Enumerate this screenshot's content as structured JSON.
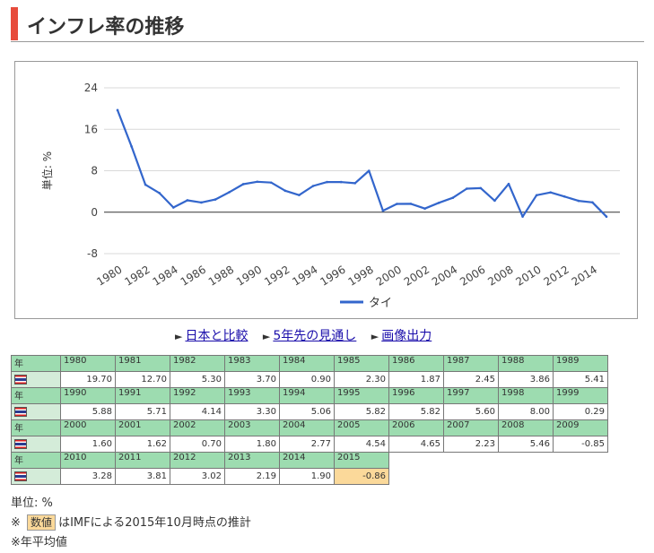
{
  "page": {
    "title": "インフレ率の推移"
  },
  "chart_data": {
    "type": "line",
    "ylabel": "単位: %",
    "ylim": [
      -8,
      24
    ],
    "yticks": [
      24,
      16,
      8,
      0,
      -8
    ],
    "xticks": [
      "1980",
      "1982",
      "1984",
      "1986",
      "1988",
      "1990",
      "1992",
      "1994",
      "1996",
      "1998",
      "2000",
      "2002",
      "2004",
      "2006",
      "2008",
      "2010",
      "2012",
      "2014"
    ],
    "x": [
      1980,
      1981,
      1982,
      1983,
      1984,
      1985,
      1986,
      1987,
      1988,
      1989,
      1990,
      1991,
      1992,
      1993,
      1994,
      1995,
      1996,
      1997,
      1998,
      1999,
      2000,
      2001,
      2002,
      2003,
      2004,
      2005,
      2006,
      2007,
      2008,
      2009,
      2010,
      2011,
      2012,
      2013,
      2014,
      2015
    ],
    "series": [
      {
        "name": "タイ",
        "color": "#3366cc",
        "values": [
          19.7,
          12.7,
          5.3,
          3.7,
          0.9,
          2.3,
          1.87,
          2.45,
          3.86,
          5.41,
          5.88,
          5.71,
          4.14,
          3.3,
          5.06,
          5.82,
          5.82,
          5.6,
          8.0,
          0.29,
          1.6,
          1.62,
          0.7,
          1.8,
          2.77,
          4.54,
          4.65,
          2.23,
          5.46,
          -0.85,
          3.28,
          3.81,
          3.02,
          2.19,
          1.9,
          -0.86
        ]
      }
    ],
    "legend": "bottom-center",
    "grid": true
  },
  "links": [
    "日本と比較",
    "5年先の見通し",
    "画像出力"
  ],
  "table": {
    "year_label": "年",
    "flag_icon": "thailand-flag-icon",
    "rows": [
      {
        "years": [
          "1980",
          "1981",
          "1982",
          "1983",
          "1984",
          "1985",
          "1986",
          "1987",
          "1988",
          "1989"
        ],
        "values": [
          "19.70",
          "12.70",
          "5.30",
          "3.70",
          "0.90",
          "2.30",
          "1.87",
          "2.45",
          "3.86",
          "5.41"
        ]
      },
      {
        "years": [
          "1990",
          "1991",
          "1992",
          "1993",
          "1994",
          "1995",
          "1996",
          "1997",
          "1998",
          "1999"
        ],
        "values": [
          "5.88",
          "5.71",
          "4.14",
          "3.30",
          "5.06",
          "5.82",
          "5.82",
          "5.60",
          "8.00",
          "0.29"
        ]
      },
      {
        "years": [
          "2000",
          "2001",
          "2002",
          "2003",
          "2004",
          "2005",
          "2006",
          "2007",
          "2008",
          "2009"
        ],
        "values": [
          "1.60",
          "1.62",
          "0.70",
          "1.80",
          "2.77",
          "4.54",
          "4.65",
          "2.23",
          "5.46",
          "-0.85"
        ]
      },
      {
        "years": [
          "2010",
          "2011",
          "2012",
          "2013",
          "2014",
          "2015"
        ],
        "values": [
          "3.28",
          "3.81",
          "3.02",
          "2.19",
          "1.90",
          "-0.86"
        ]
      }
    ],
    "estimate_years": [
      "2015"
    ],
    "estimate_color": "#fbd99a"
  },
  "notes": {
    "unit": "単位: %",
    "mark": "※",
    "badge": "数値",
    "estimate_note": "はIMFによる2015年10月時点の推計",
    "annual_note": "※年平均値"
  }
}
